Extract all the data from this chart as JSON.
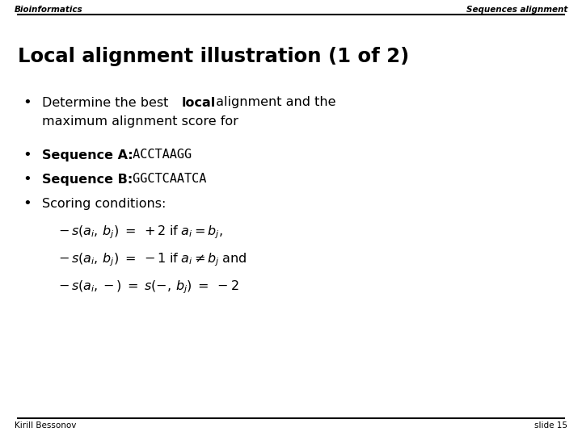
{
  "bg_color": "#ffffff",
  "header_left": "Bioinformatics",
  "header_right": "Sequences alignment",
  "title": "Local alignment illustration (1 of 2)",
  "footer_left": "Kirill Bessonov",
  "footer_right": "slide 15"
}
